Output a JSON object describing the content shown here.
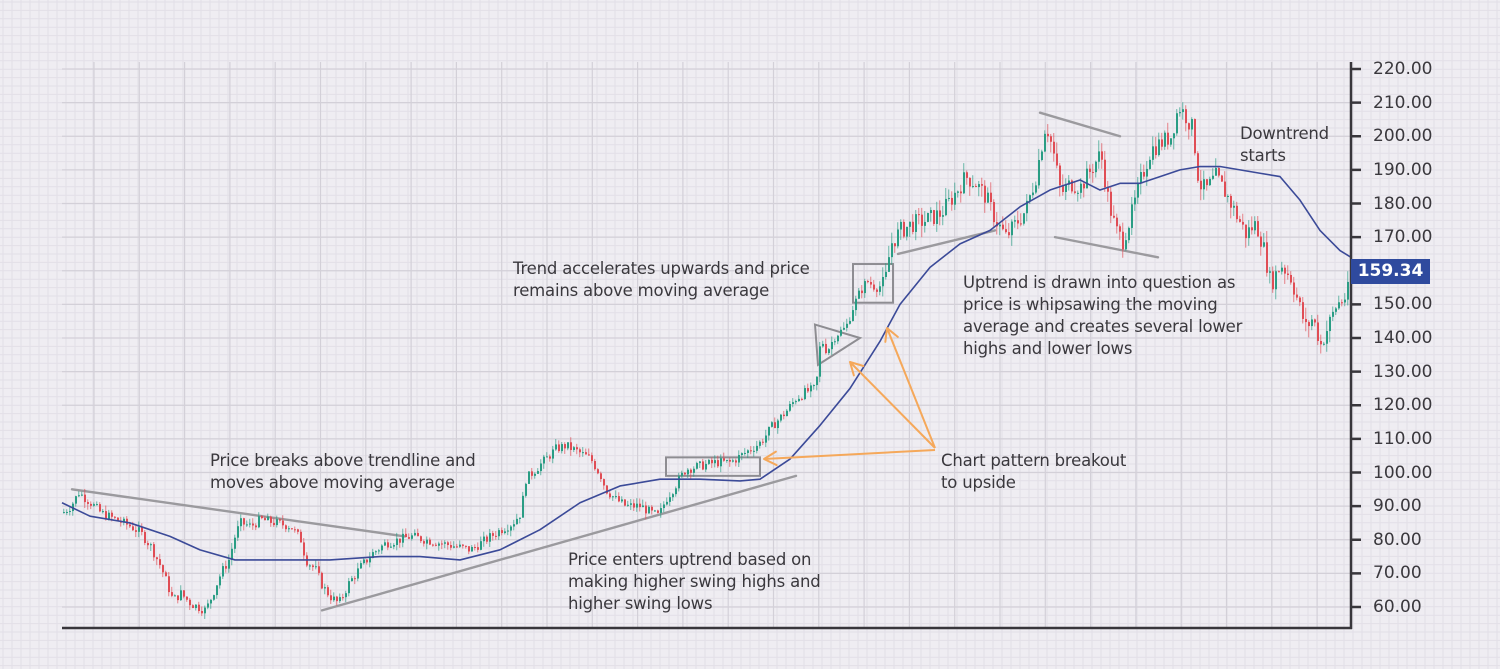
{
  "chart_data": {
    "type": "candlestick",
    "title": "",
    "xlabel": "",
    "ylabel": "",
    "ylim": [
      60,
      220
    ],
    "y_ticks": [
      220,
      210,
      200,
      190,
      180,
      170,
      160,
      150,
      140,
      130,
      120,
      110,
      100,
      90,
      80,
      70,
      60
    ],
    "y_tick_labels": [
      "220.00",
      "210.00",
      "200.00",
      "190.00",
      "180.00",
      "170.00",
      "",
      "150.00",
      "140.00",
      "130.00",
      "120.00",
      "110.00",
      "100.00",
      "90.00",
      "80.00",
      "70.00",
      "60.00"
    ],
    "last_price": 159.34,
    "last_price_label": "159.34",
    "price_path": [
      [
        62,
        88
      ],
      [
        70,
        90
      ],
      [
        78,
        94
      ],
      [
        90,
        91
      ],
      [
        100,
        88
      ],
      [
        115,
        86
      ],
      [
        130,
        84
      ],
      [
        140,
        82
      ],
      [
        150,
        78
      ],
      [
        160,
        72
      ],
      [
        165,
        68
      ],
      [
        172,
        62
      ],
      [
        180,
        64
      ],
      [
        190,
        61
      ],
      [
        205,
        59
      ],
      [
        212,
        64
      ],
      [
        220,
        70
      ],
      [
        228,
        74
      ],
      [
        235,
        82
      ],
      [
        240,
        85
      ],
      [
        250,
        84
      ],
      [
        260,
        86
      ],
      [
        275,
        85
      ],
      [
        290,
        84
      ],
      [
        300,
        80
      ],
      [
        305,
        74
      ],
      [
        315,
        71
      ],
      [
        322,
        66
      ],
      [
        330,
        63
      ],
      [
        338,
        61
      ],
      [
        348,
        67
      ],
      [
        360,
        72
      ],
      [
        372,
        76
      ],
      [
        385,
        79
      ],
      [
        398,
        80
      ],
      [
        410,
        81
      ],
      [
        425,
        80
      ],
      [
        440,
        79
      ],
      [
        455,
        78
      ],
      [
        470,
        77
      ],
      [
        485,
        80
      ],
      [
        500,
        83
      ],
      [
        512,
        85
      ],
      [
        520,
        88
      ],
      [
        525,
        98
      ],
      [
        535,
        101
      ],
      [
        545,
        104
      ],
      [
        555,
        107
      ],
      [
        565,
        108
      ],
      [
        578,
        106
      ],
      [
        590,
        104
      ],
      [
        600,
        99
      ],
      [
        605,
        95
      ],
      [
        615,
        92
      ],
      [
        625,
        90
      ],
      [
        640,
        90
      ],
      [
        650,
        88
      ],
      [
        658,
        87
      ],
      [
        665,
        92
      ],
      [
        672,
        95
      ],
      [
        685,
        101
      ],
      [
        700,
        102
      ],
      [
        715,
        103
      ],
      [
        730,
        103
      ],
      [
        745,
        106
      ],
      [
        760,
        109
      ],
      [
        772,
        114
      ],
      [
        785,
        118
      ],
      [
        795,
        122
      ],
      [
        805,
        124
      ],
      [
        815,
        125
      ],
      [
        820,
        140
      ],
      [
        826,
        136
      ],
      [
        835,
        141
      ],
      [
        845,
        143
      ],
      [
        852,
        149
      ],
      [
        858,
        153
      ],
      [
        866,
        157
      ],
      [
        875,
        155
      ],
      [
        884,
        156
      ],
      [
        890,
        168
      ],
      [
        900,
        172
      ],
      [
        912,
        174
      ],
      [
        925,
        175
      ],
      [
        940,
        177
      ],
      [
        952,
        182
      ],
      [
        965,
        188
      ],
      [
        975,
        186
      ],
      [
        985,
        182
      ],
      [
        995,
        175
      ],
      [
        1005,
        170
      ],
      [
        1015,
        174
      ],
      [
        1025,
        178
      ],
      [
        1035,
        188
      ],
      [
        1045,
        204
      ],
      [
        1052,
        196
      ],
      [
        1060,
        183
      ],
      [
        1070,
        186
      ],
      [
        1080,
        185
      ],
      [
        1090,
        190
      ],
      [
        1100,
        195
      ],
      [
        1108,
        180
      ],
      [
        1115,
        172
      ],
      [
        1122,
        169
      ],
      [
        1130,
        176
      ],
      [
        1140,
        187
      ],
      [
        1150,
        196
      ],
      [
        1160,
        198
      ],
      [
        1170,
        200
      ],
      [
        1178,
        209
      ],
      [
        1185,
        206
      ],
      [
        1192,
        202
      ],
      [
        1198,
        186
      ],
      [
        1205,
        184
      ],
      [
        1215,
        188
      ],
      [
        1225,
        183
      ],
      [
        1235,
        177
      ],
      [
        1245,
        171
      ],
      [
        1255,
        174
      ],
      [
        1262,
        168
      ],
      [
        1270,
        156
      ],
      [
        1280,
        162
      ],
      [
        1290,
        158
      ],
      [
        1298,
        150
      ],
      [
        1305,
        143
      ],
      [
        1312,
        146
      ],
      [
        1320,
        138
      ],
      [
        1328,
        144
      ],
      [
        1336,
        150
      ],
      [
        1344,
        152
      ],
      [
        1350,
        156
      ]
    ],
    "series": [
      {
        "name": "Moving average",
        "color": "#3b4a98",
        "points": [
          [
            62,
            91
          ],
          [
            90,
            87
          ],
          [
            130,
            85
          ],
          [
            170,
            81
          ],
          [
            200,
            77
          ],
          [
            235,
            74
          ],
          [
            280,
            74
          ],
          [
            330,
            74
          ],
          [
            380,
            75
          ],
          [
            420,
            75
          ],
          [
            460,
            74
          ],
          [
            500,
            77
          ],
          [
            540,
            83
          ],
          [
            580,
            91
          ],
          [
            620,
            96
          ],
          [
            660,
            98
          ],
          [
            700,
            98
          ],
          [
            740,
            97.5
          ],
          [
            760,
            98
          ],
          [
            790,
            104
          ],
          [
            820,
            114
          ],
          [
            850,
            125
          ],
          [
            880,
            139
          ],
          [
            900,
            150
          ],
          [
            930,
            161
          ],
          [
            960,
            168
          ],
          [
            990,
            172
          ],
          [
            1020,
            179
          ],
          [
            1050,
            184
          ],
          [
            1080,
            187
          ],
          [
            1100,
            184
          ],
          [
            1120,
            186
          ],
          [
            1140,
            186
          ],
          [
            1160,
            188
          ],
          [
            1180,
            190
          ],
          [
            1200,
            191
          ],
          [
            1220,
            191
          ],
          [
            1240,
            190
          ],
          [
            1260,
            189
          ],
          [
            1280,
            188
          ],
          [
            1300,
            181
          ],
          [
            1320,
            172
          ],
          [
            1340,
            166
          ],
          [
            1351,
            164
          ]
        ]
      }
    ],
    "up_color": "#2a9d84",
    "down_color": "#e04d55",
    "trendlines": [
      {
        "name": "descending-trendline",
        "points": [
          [
            72,
            95
          ],
          [
            405,
            81
          ]
        ]
      },
      {
        "name": "ascending-trendline",
        "points": [
          [
            322,
            59
          ],
          [
            796,
            99
          ]
        ]
      },
      {
        "name": "support-line-top-left",
        "points": [
          [
            898,
            165
          ],
          [
            995,
            172
          ]
        ]
      },
      {
        "name": "channel-top",
        "points": [
          [
            1040,
            207
          ],
          [
            1120,
            200
          ]
        ]
      },
      {
        "name": "channel-bottom",
        "points": [
          [
            1055,
            170
          ],
          [
            1158,
            164
          ]
        ]
      }
    ],
    "patterns": [
      {
        "name": "rectangle-consolidation",
        "type": "rect",
        "x": 666,
        "y_top": 104.5,
        "y_bottom": 99,
        "width": 94
      },
      {
        "name": "triangle-pennant",
        "type": "triangle",
        "points": [
          [
            815,
            144
          ],
          [
            860,
            140
          ],
          [
            818,
            132
          ]
        ]
      },
      {
        "name": "flag-box",
        "type": "rect",
        "x": 853,
        "y_top": 162,
        "y_bottom": 150.5,
        "width": 40
      }
    ],
    "arrows": [
      {
        "name": "arrow-to-rectangle",
        "from": [
          935,
          450
        ],
        "to": [
          764,
          459
        ]
      },
      {
        "name": "arrow-to-triangle",
        "from": [
          935,
          448
        ],
        "to": [
          850,
          362
        ]
      },
      {
        "name": "arrow-to-flag",
        "from": [
          935,
          448
        ],
        "to": [
          887,
          328
        ]
      }
    ],
    "arrow_color": "#f5a85a",
    "annotations": [
      {
        "name": "annotation-trendline-break",
        "text": "Price breaks above trendline and\nmoves above moving average",
        "x": 210,
        "y": 450
      },
      {
        "name": "annotation-trend-accelerates",
        "text": "Trend accelerates upwards and price\nremains above moving average",
        "x": 513,
        "y": 258
      },
      {
        "name": "annotation-uptrend-entry",
        "text": "Price enters uptrend based on\nmaking higher swing highs and\nhigher swing lows",
        "x": 568,
        "y": 549
      },
      {
        "name": "annotation-breakout",
        "text": "Chart pattern breakout\nto upside",
        "x": 941,
        "y": 450
      },
      {
        "name": "annotation-whipsaw",
        "text": "Uptrend is drawn into question as\nprice is whipsawing the moving\naverage and creates several lower\nhighs and lower lows",
        "x": 963,
        "y": 272
      },
      {
        "name": "annotation-downtrend",
        "text": "Downtrend\nstarts",
        "x": 1240,
        "y": 123
      }
    ],
    "grid": true,
    "legend": null
  }
}
